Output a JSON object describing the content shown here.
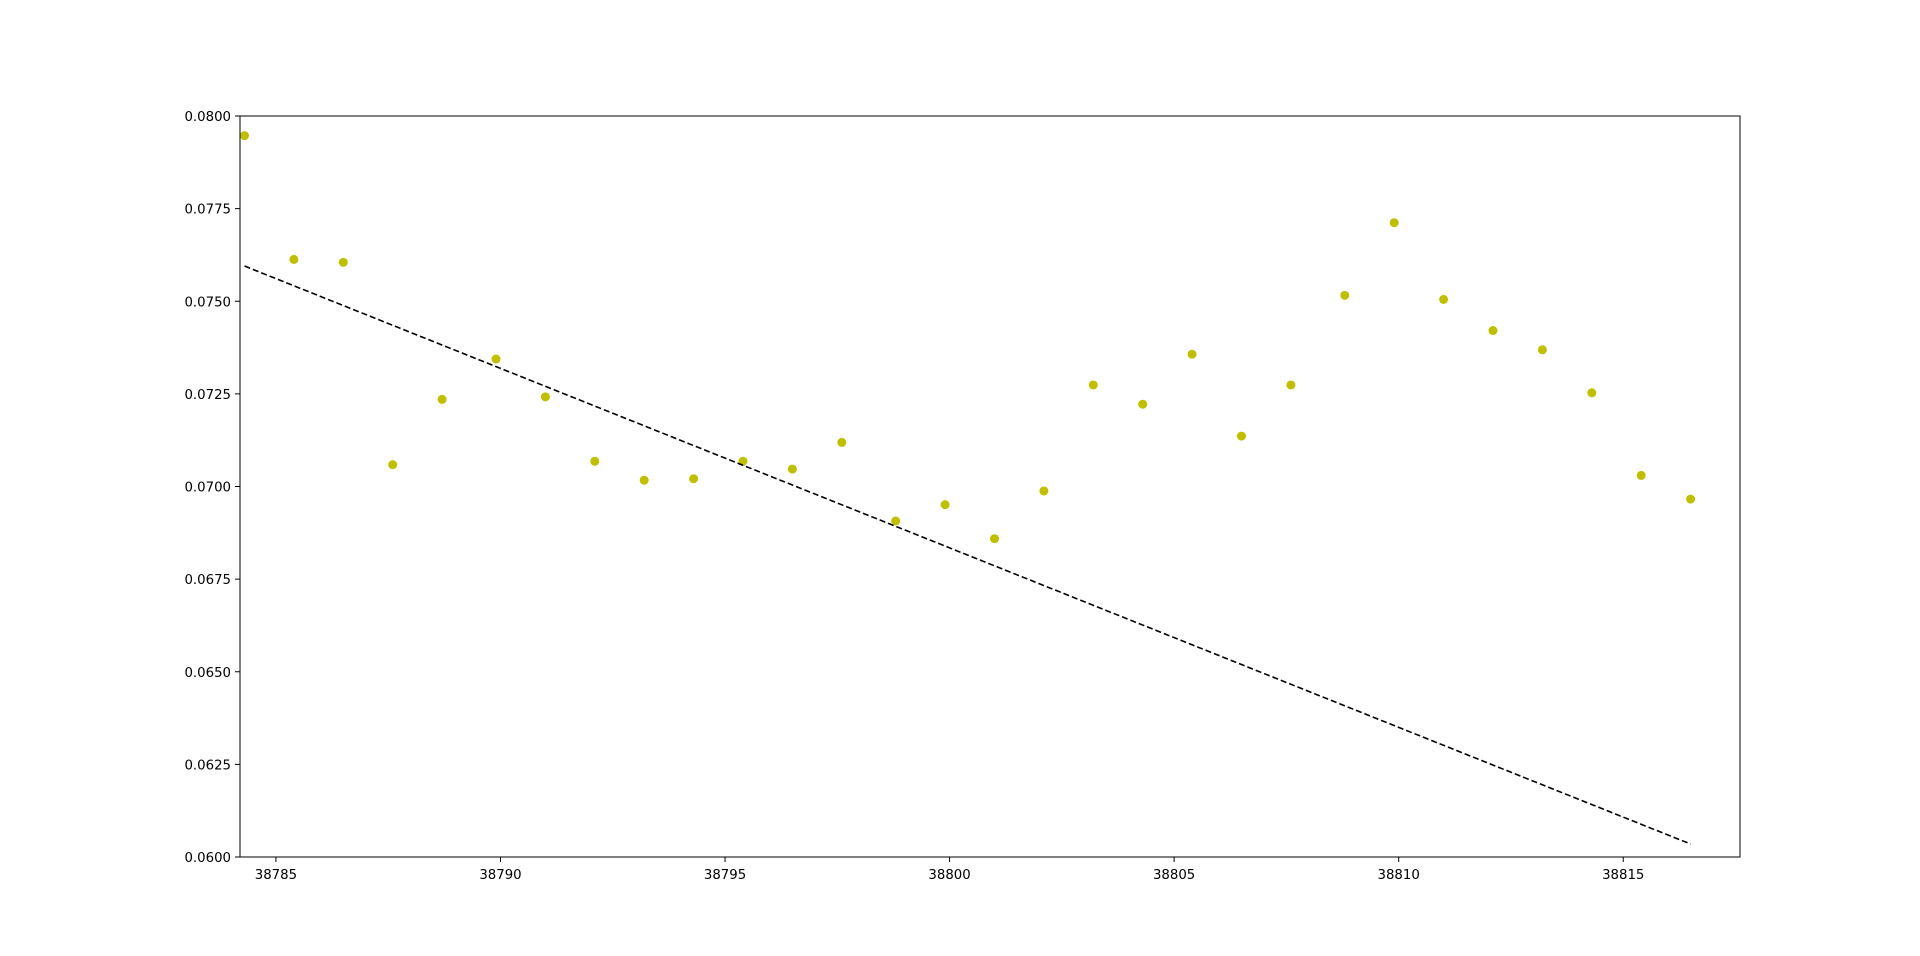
{
  "chart_data": {
    "type": "scatter",
    "title": "",
    "xlabel": "",
    "ylabel": "",
    "xlim": [
      38784.2,
      38817.6
    ],
    "ylim": [
      0.06,
      0.08
    ],
    "grid": false,
    "legend": "none",
    "x_ticks": [
      "38785",
      "38790",
      "38795",
      "38800",
      "38805",
      "38810",
      "38815"
    ],
    "y_ticks": [
      "0.0600",
      "0.0625",
      "0.0650",
      "0.0675",
      "0.0700",
      "0.0725",
      "0.0750",
      "0.0775",
      "0.0800"
    ],
    "series": [
      {
        "kind": "scatter",
        "color": "#bfbf00",
        "points": [
          [
            38784.3,
            0.07947
          ],
          [
            38785.4,
            0.07613
          ],
          [
            38786.5,
            0.07605
          ],
          [
            38787.6,
            0.07059
          ],
          [
            38788.7,
            0.07235
          ],
          [
            38789.9,
            0.07344
          ],
          [
            38791.0,
            0.07242
          ],
          [
            38792.1,
            0.07068
          ],
          [
            38793.2,
            0.07017
          ],
          [
            38794.3,
            0.07021
          ],
          [
            38795.4,
            0.07068
          ],
          [
            38796.5,
            0.07047
          ],
          [
            38797.6,
            0.07119
          ],
          [
            38798.8,
            0.06907
          ],
          [
            38799.9,
            0.06951
          ],
          [
            38801.0,
            0.06859
          ],
          [
            38802.1,
            0.06988
          ],
          [
            38803.2,
            0.07274
          ],
          [
            38804.3,
            0.07222
          ],
          [
            38805.4,
            0.07357
          ],
          [
            38806.5,
            0.07136
          ],
          [
            38807.6,
            0.07274
          ],
          [
            38808.8,
            0.07516
          ],
          [
            38809.9,
            0.07712
          ],
          [
            38811.0,
            0.07505
          ],
          [
            38812.1,
            0.07421
          ],
          [
            38813.2,
            0.07369
          ],
          [
            38814.3,
            0.07253
          ],
          [
            38815.4,
            0.0703
          ],
          [
            38816.5,
            0.06966
          ]
        ]
      },
      {
        "kind": "line",
        "style": "dashed",
        "color": "#000000",
        "points": [
          [
            38784.3,
            0.07595
          ],
          [
            38816.5,
            0.06035
          ]
        ]
      }
    ]
  }
}
